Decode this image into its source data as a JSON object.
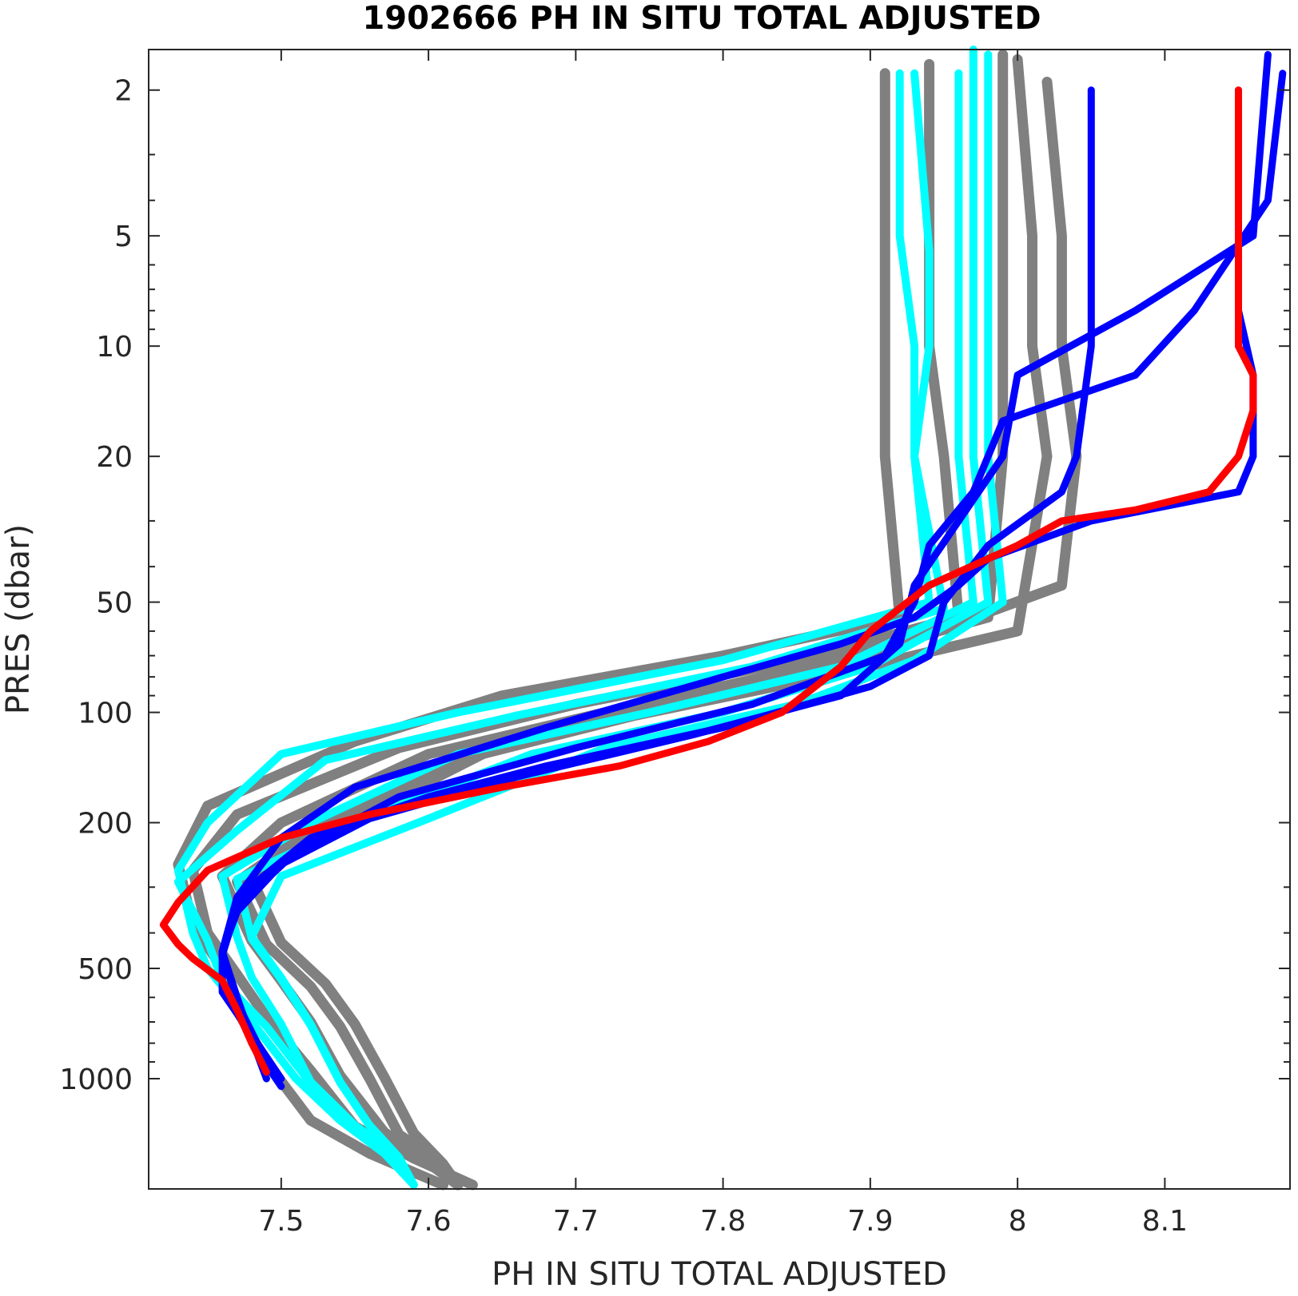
{
  "chart_data": {
    "type": "line",
    "title": "1902666  PH IN SITU TOTAL ADJUSTED",
    "xlabel": "PH IN SITU TOTAL ADJUSTED",
    "ylabel": "PRES (dbar)",
    "xlim": [
      7.41,
      8.185
    ],
    "ylim": [
      1.55,
      2000
    ],
    "y_scale": "log",
    "y_reversed": true,
    "grid": false,
    "x_ticks": [
      "7.5",
      "7.6",
      "7.7",
      "7.8",
      "7.9",
      "8",
      "8.1"
    ],
    "x_tick_values": [
      7.5,
      7.6,
      7.7,
      7.8,
      7.9,
      8.0,
      8.1
    ],
    "y_ticks": [
      "2",
      "5",
      "10",
      "20",
      "50",
      "100",
      "200",
      "500",
      "1000"
    ],
    "y_tick_values": [
      2,
      5,
      10,
      20,
      50,
      100,
      200,
      500,
      1000
    ],
    "colors": {
      "gray": "#808080",
      "cyan": "#00ffff",
      "blue": "#0000ff",
      "red": "#ff0000",
      "axis": "#262626"
    },
    "series": [
      {
        "color": "gray",
        "x": [
          7.91,
          7.91,
          7.91,
          7.91,
          7.92,
          7.8,
          7.65,
          7.55,
          7.45,
          7.43,
          7.44,
          7.46,
          7.47,
          7.49,
          7.52,
          7.56,
          7.61
        ],
        "y": [
          1.8,
          5,
          10,
          20,
          55,
          70,
          90,
          120,
          180,
          260,
          380,
          500,
          650,
          900,
          1300,
          1600,
          1950
        ]
      },
      {
        "color": "gray",
        "x": [
          7.94,
          7.94,
          7.94,
          7.95,
          7.96,
          7.85,
          7.7,
          7.58,
          7.47,
          7.44,
          7.45,
          7.47,
          7.49,
          7.52,
          7.55,
          7.59,
          7.63
        ],
        "y": [
          1.7,
          5,
          10,
          20,
          55,
          72,
          95,
          125,
          190,
          270,
          400,
          520,
          680,
          950,
          1350,
          1650,
          1950
        ]
      },
      {
        "color": "gray",
        "x": [
          7.99,
          7.99,
          7.99,
          7.99,
          7.98,
          7.86,
          7.72,
          7.6,
          7.5,
          7.46,
          7.48,
          7.5,
          7.52,
          7.54,
          7.57,
          7.6,
          7.62
        ],
        "y": [
          1.6,
          5,
          10,
          20,
          55,
          75,
          100,
          130,
          200,
          280,
          420,
          540,
          700,
          980,
          1400,
          1700,
          1950
        ]
      },
      {
        "color": "gray",
        "x": [
          8.0,
          8.01,
          8.01,
          8.02,
          8.0,
          7.88,
          7.74,
          7.62,
          7.52,
          7.47,
          7.49,
          7.52,
          7.54,
          7.56,
          7.58,
          7.61,
          7.62
        ],
        "y": [
          1.65,
          5,
          10,
          20,
          60,
          78,
          102,
          135,
          210,
          290,
          430,
          560,
          720,
          1000,
          1420,
          1720,
          1950
        ]
      },
      {
        "color": "gray",
        "x": [
          8.02,
          8.03,
          8.03,
          8.04,
          8.03,
          7.9,
          7.76,
          7.64,
          7.54,
          7.48,
          7.5,
          7.53,
          7.55,
          7.57,
          7.59,
          7.61,
          7.62
        ],
        "y": [
          1.9,
          5,
          10,
          20,
          45,
          70,
          96,
          128,
          205,
          285,
          425,
          550,
          710,
          990,
          1410,
          1710,
          1950
        ]
      },
      {
        "color": "cyan",
        "x": [
          7.92,
          7.92,
          7.93,
          7.93,
          7.94,
          7.8,
          7.62,
          7.5,
          7.45,
          7.43,
          7.44,
          7.45,
          7.48,
          7.51,
          7.54,
          7.57,
          7.59
        ],
        "y": [
          1.8,
          5,
          10,
          20,
          50,
          72,
          100,
          130,
          200,
          270,
          400,
          500,
          700,
          1000,
          1300,
          1600,
          1950
        ]
      },
      {
        "color": "cyan",
        "x": [
          7.93,
          7.94,
          7.94,
          7.93,
          7.95,
          7.82,
          7.66,
          7.53,
          7.47,
          7.43,
          7.45,
          7.46,
          7.49,
          7.52,
          7.55,
          7.58,
          7.59
        ],
        "y": [
          1.8,
          5.5,
          10,
          20,
          52,
          75,
          102,
          135,
          210,
          290,
          420,
          540,
          720,
          1030,
          1350,
          1650,
          1950
        ]
      },
      {
        "color": "cyan",
        "x": [
          7.96,
          7.96,
          7.96,
          7.96,
          7.97,
          7.88,
          7.75,
          7.62,
          7.52,
          7.46,
          7.47,
          7.48,
          7.5,
          7.52,
          7.55,
          7.58,
          7.59
        ],
        "y": [
          1.8,
          5,
          10,
          20,
          50,
          75,
          100,
          130,
          200,
          280,
          410,
          530,
          710,
          1020,
          1340,
          1640,
          1950
        ]
      },
      {
        "color": "cyan",
        "x": [
          7.97,
          7.97,
          7.97,
          7.97,
          7.98,
          7.9,
          7.8,
          7.67,
          7.55,
          7.47,
          7.48,
          7.5,
          7.52,
          7.54,
          7.56,
          7.58,
          7.59
        ],
        "y": [
          1.55,
          5,
          10,
          20,
          50,
          75,
          100,
          130,
          200,
          285,
          415,
          535,
          715,
          1025,
          1345,
          1645,
          1950
        ]
      },
      {
        "color": "cyan",
        "x": [
          7.98,
          7.98,
          7.98,
          7.98,
          7.99,
          7.93,
          7.85,
          7.72,
          7.6,
          7.5,
          7.48,
          7.5,
          7.52,
          7.54,
          7.56,
          7.58,
          7.59
        ],
        "y": [
          1.6,
          5,
          10,
          20,
          50,
          72,
          95,
          125,
          195,
          280,
          410,
          530,
          710,
          1020,
          1340,
          1640,
          1950
        ]
      },
      {
        "color": "blue",
        "x": [
          8.05,
          8.05,
          8.05,
          8.04,
          8.03,
          7.98,
          7.95,
          7.94,
          7.9,
          7.8,
          7.68,
          7.6,
          7.52,
          7.47,
          7.46,
          7.47,
          7.48,
          7.5
        ],
        "y": [
          2,
          5,
          10,
          20,
          25,
          35,
          50,
          70,
          85,
          110,
          140,
          170,
          220,
          320,
          450,
          600,
          800,
          1050
        ]
      },
      {
        "color": "blue",
        "x": [
          8.17,
          8.16,
          8.08,
          8.0,
          7.99,
          7.96,
          7.93,
          7.92,
          7.88,
          7.78,
          7.66,
          7.56,
          7.5,
          7.47,
          7.46,
          7.46,
          7.48,
          7.5
        ],
        "y": [
          1.6,
          5,
          8,
          12,
          20,
          30,
          45,
          65,
          90,
          115,
          150,
          195,
          260,
          350,
          450,
          580,
          760,
          1000
        ]
      },
      {
        "color": "blue",
        "x": [
          8.18,
          8.17,
          8.12,
          8.08,
          7.99,
          7.97,
          7.94,
          7.93,
          7.91,
          7.82,
          7.7,
          7.58,
          7.51,
          7.47,
          7.46,
          7.47,
          7.48,
          7.49
        ],
        "y": [
          1.8,
          4,
          8,
          12,
          16,
          25,
          35,
          50,
          70,
          95,
          125,
          170,
          240,
          340,
          460,
          600,
          780,
          1000
        ]
      },
      {
        "color": "blue",
        "x": [
          8.15,
          8.15,
          8.16,
          8.16,
          8.15,
          8.05,
          7.98,
          7.96,
          7.93,
          7.88,
          7.8,
          7.68,
          7.55,
          7.5,
          7.47,
          7.46,
          7.47,
          7.49
        ],
        "y": [
          2,
          8,
          12,
          20,
          25,
          30,
          38,
          45,
          55,
          65,
          80,
          110,
          160,
          220,
          320,
          450,
          620,
          900
        ]
      },
      {
        "color": "red",
        "x": [
          8.15,
          8.15,
          8.16,
          8.16,
          8.15,
          8.13,
          8.08,
          8.03,
          8.0,
          7.94,
          7.9,
          7.88,
          7.84,
          7.79,
          7.73,
          7.65,
          7.56,
          7.5,
          7.45,
          7.43,
          7.42,
          7.43,
          7.44,
          7.46,
          7.47,
          7.48,
          7.49
        ],
        "y": [
          2,
          10,
          12,
          15,
          20,
          25,
          28,
          30,
          35,
          45,
          60,
          75,
          100,
          120,
          140,
          160,
          190,
          220,
          270,
          330,
          380,
          430,
          470,
          540,
          650,
          800,
          960
        ]
      }
    ]
  }
}
